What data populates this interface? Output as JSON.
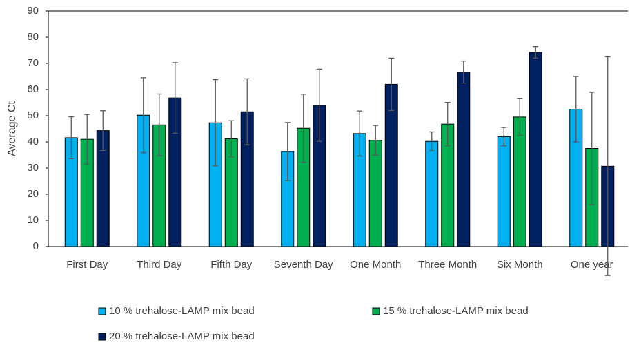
{
  "chart_data": {
    "type": "bar",
    "y_label": "Average Ct",
    "categories": [
      "First Day",
      "Third Day",
      "Fifth Day",
      "Seventh Day",
      "One Month",
      "Three Month",
      "Six Month",
      "One year"
    ],
    "series": [
      {
        "name": "10 % trehalose-LAMP mix bead",
        "color": "#00b0f0",
        "values": [
          41.6,
          50.2,
          47.3,
          36.3,
          43.2,
          40.2,
          42,
          52.5
        ],
        "errors": [
          8,
          14.3,
          16.5,
          11.1,
          8.6,
          3.6,
          3.5,
          12.5
        ]
      },
      {
        "name": "15 % trehalose-LAMP mix bead",
        "color": "#00b050",
        "values": [
          41,
          46.5,
          41.2,
          45.2,
          40.6,
          46.8,
          49.5,
          37.5
        ],
        "errors": [
          9.5,
          11.8,
          6.9,
          13,
          5.7,
          8.3,
          7,
          21.5
        ]
      },
      {
        "name": "20 % trehalose-LAMP mix bead",
        "color": "#002060",
        "values": [
          44.3,
          56.8,
          51.5,
          54,
          62,
          66.7,
          74.2,
          30.7
        ],
        "errors": [
          7.6,
          13.5,
          12.6,
          13.8,
          10,
          4.2,
          2.2,
          41.8
        ]
      }
    ],
    "ylim": [
      0,
      90
    ],
    "yticks": [
      0,
      10,
      20,
      30,
      40,
      50,
      60,
      70,
      80,
      90
    ]
  }
}
